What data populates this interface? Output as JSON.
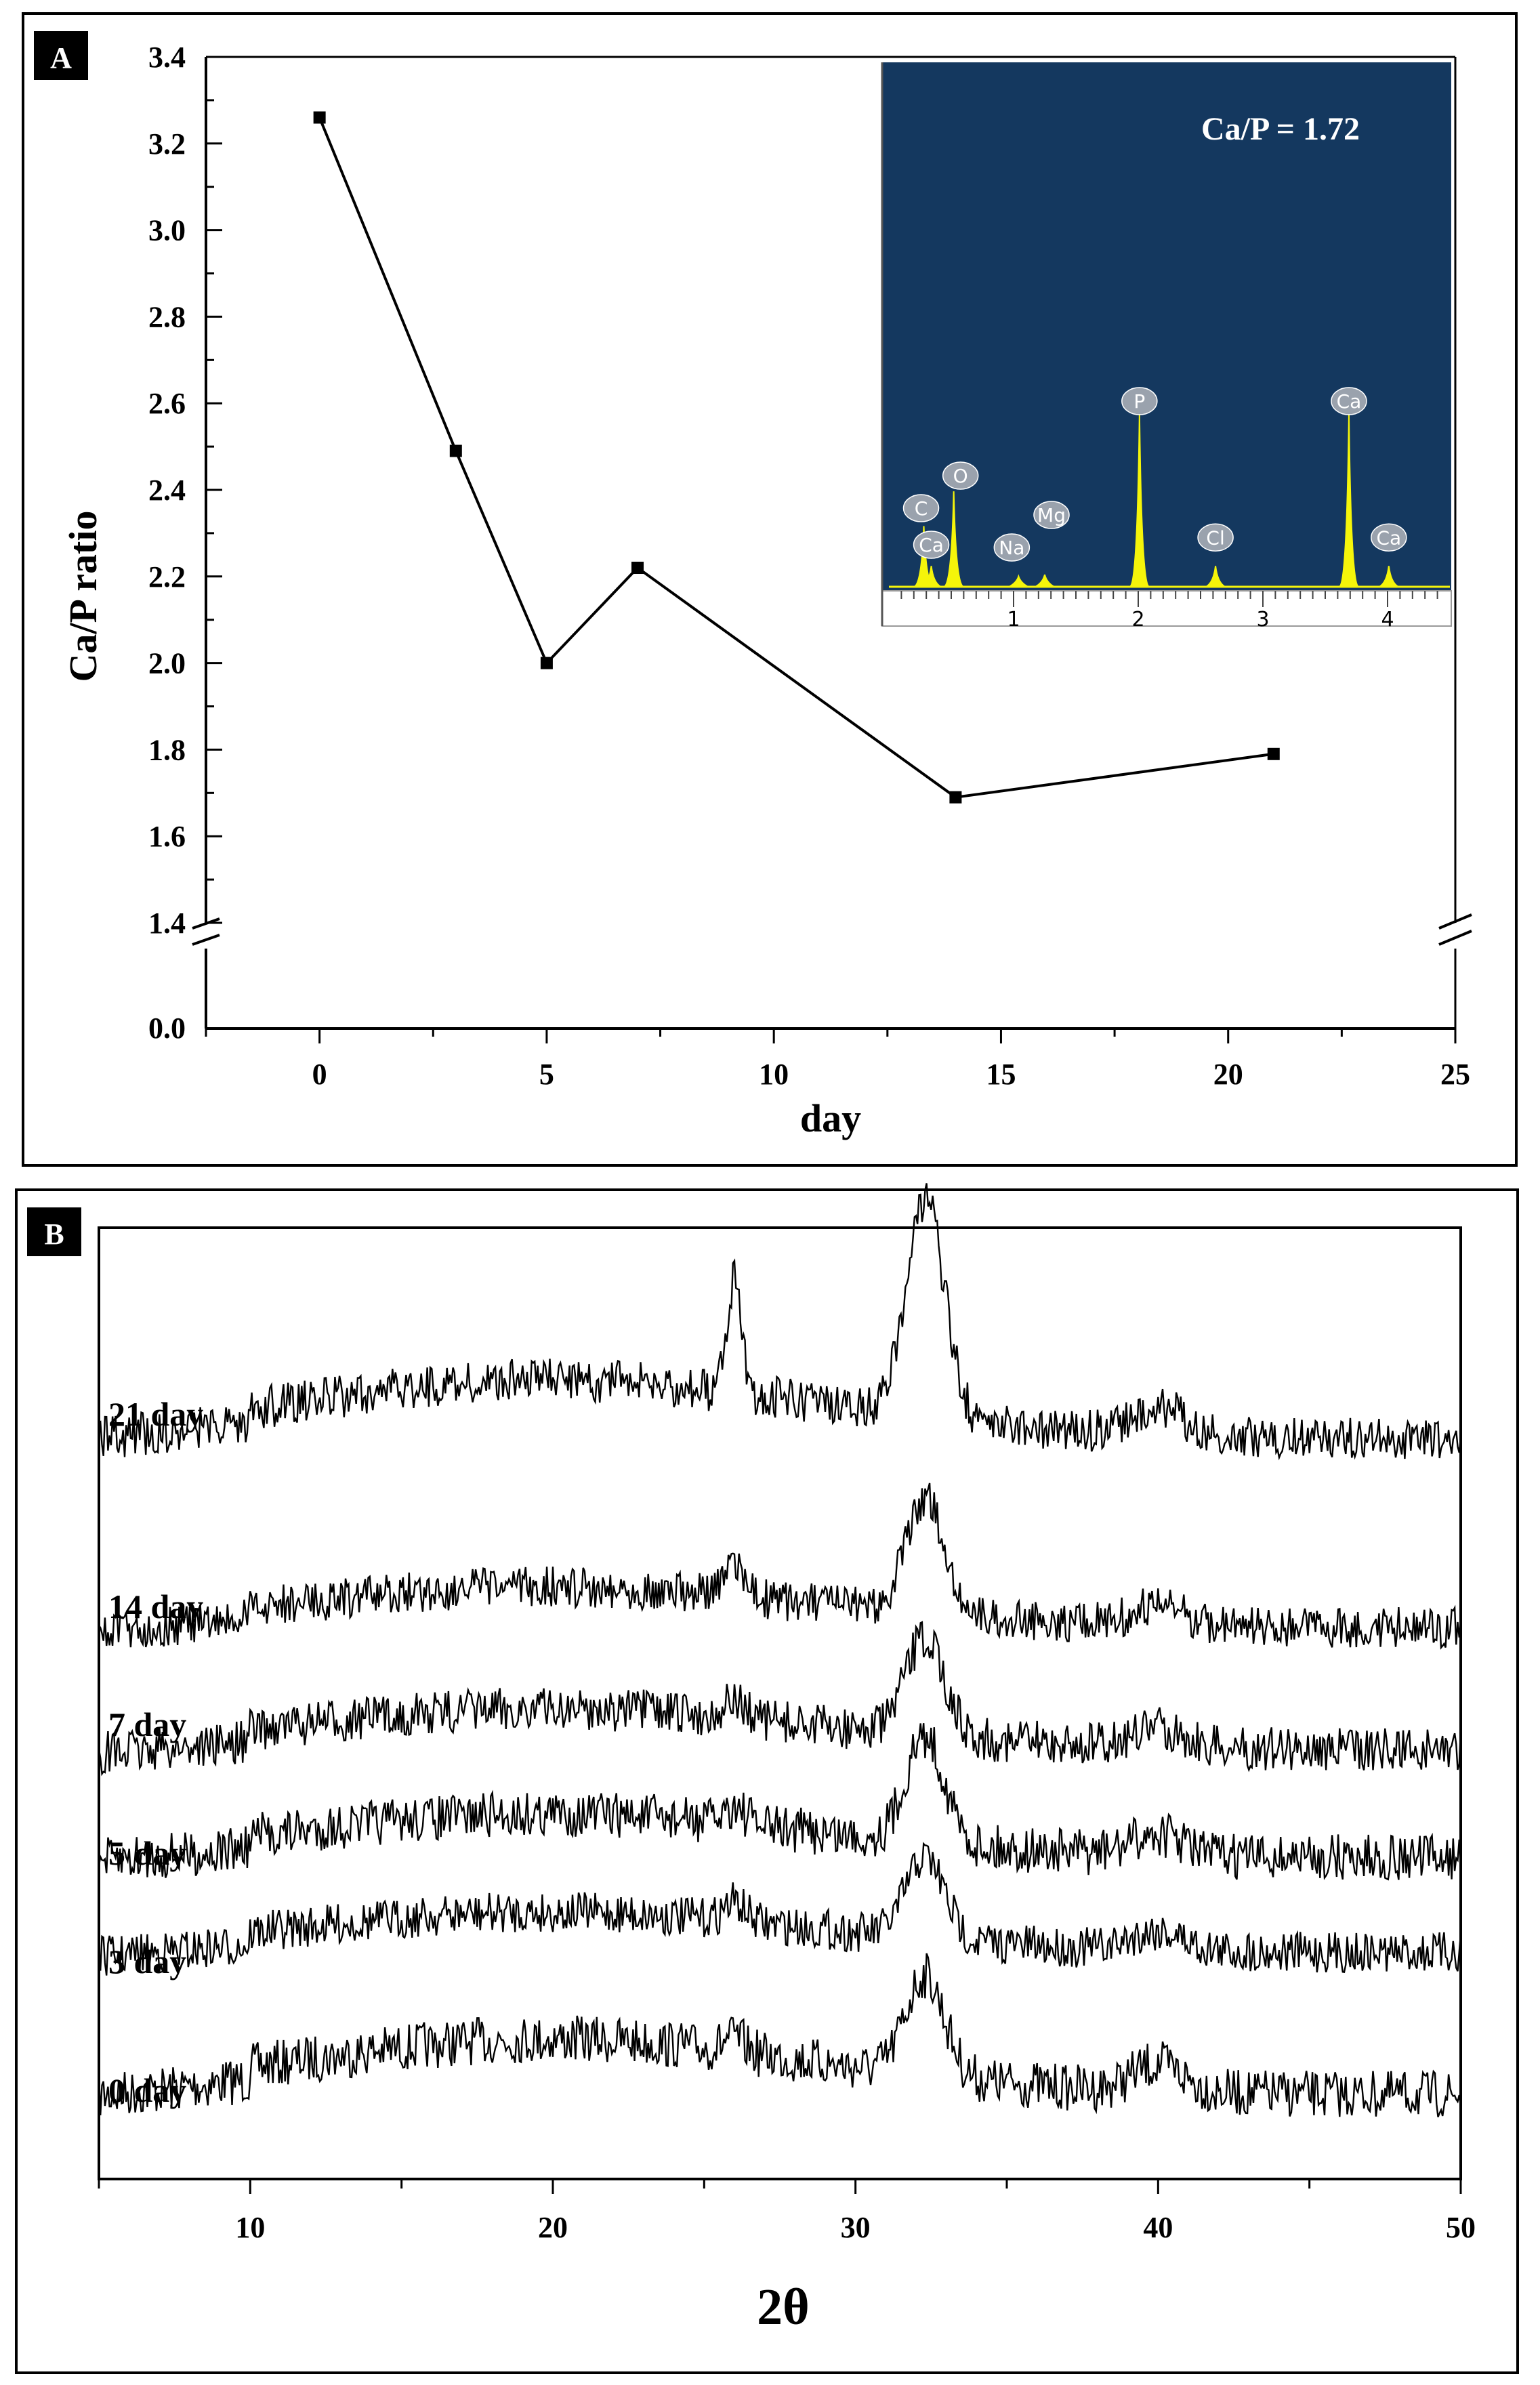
{
  "panels": {
    "a": {
      "badge": "A"
    },
    "b": {
      "badge": "B"
    }
  },
  "colors": {
    "line": "#000000",
    "badge_bg": "#000000",
    "badge_fg": "#ffffff",
    "inset_bg": "#14385f",
    "inset_peak": "#f5f50a",
    "bubble": "#9aa2ad"
  },
  "chart_data": [
    {
      "type": "line",
      "panel": "A",
      "title": "",
      "xlabel": "day",
      "ylabel": "Ca/P ratio",
      "x": [
        0,
        3,
        5,
        7,
        14,
        21
      ],
      "y": [
        3.26,
        2.49,
        2.0,
        2.22,
        1.69,
        1.79
      ],
      "xlim": [
        -2.5,
        25
      ],
      "xticks": [
        0,
        5,
        10,
        15,
        20,
        25
      ],
      "xtick_labels": [
        "0",
        "5",
        "10",
        "15",
        "20",
        "25"
      ],
      "ylim": [
        1.4,
        3.4
      ],
      "yticks": [
        1.4,
        1.6,
        1.8,
        2.0,
        2.2,
        2.4,
        2.6,
        2.8,
        3.0,
        3.2,
        3.4
      ],
      "ytick_labels": [
        "1.4",
        "1.6",
        "1.8",
        "2.0",
        "2.2",
        "2.4",
        "2.6",
        "2.8",
        "3.0",
        "3.2",
        "3.4"
      ],
      "axis_break": {
        "lower_label": "0.0",
        "upper_start": "1.4"
      },
      "marker": "square",
      "inset": {
        "type": "edx_spectrum",
        "annotation": "Ca/P = 1.72",
        "xlim": [
          0,
          4.5
        ],
        "xticks": [
          1,
          2,
          3,
          4
        ],
        "xtick_labels": [
          "1",
          "2",
          "3",
          "4"
        ],
        "peaks": [
          {
            "label": "C",
            "energy": 0.28,
            "height": 0.35
          },
          {
            "label": "Ca",
            "energy": 0.34,
            "height": 0.12
          },
          {
            "label": "O",
            "energy": 0.52,
            "height": 0.55
          },
          {
            "label": "Na",
            "energy": 1.04,
            "height": 0.06
          },
          {
            "label": "Mg",
            "energy": 1.25,
            "height": 0.07
          },
          {
            "label": "P",
            "energy": 2.01,
            "height": 1.0
          },
          {
            "label": "Cl",
            "energy": 2.62,
            "height": 0.12
          },
          {
            "label": "Ca",
            "energy": 3.69,
            "height": 1.0
          },
          {
            "label": "Ca",
            "energy": 4.01,
            "height": 0.12
          }
        ]
      }
    },
    {
      "type": "line",
      "panel": "B",
      "title": "",
      "xlabel": "2θ",
      "ylabel": "",
      "xlim": [
        5,
        50
      ],
      "xticks": [
        10,
        20,
        30,
        40,
        50
      ],
      "xtick_labels": [
        "10",
        "20",
        "30",
        "40",
        "50"
      ],
      "y_ticks_visible": false,
      "series": [
        {
          "name": "0 day",
          "peaks": [
            {
              "two_theta": 32.3,
              "height": 0.45,
              "width": 0.9
            },
            {
              "two_theta": 26.0,
              "height": 0.06,
              "width": 0.5
            }
          ]
        },
        {
          "name": "3 day",
          "peaks": [
            {
              "two_theta": 32.3,
              "height": 0.5,
              "width": 0.9
            },
            {
              "two_theta": 26.0,
              "height": 0.12,
              "width": 0.5
            }
          ]
        },
        {
          "name": "5 day",
          "peaks": [
            {
              "two_theta": 32.3,
              "height": 0.6,
              "width": 0.9
            },
            {
              "two_theta": 26.0,
              "height": 0.1,
              "width": 0.5
            }
          ]
        },
        {
          "name": "7 day",
          "peaks": [
            {
              "two_theta": 32.3,
              "height": 0.6,
              "width": 0.9
            },
            {
              "two_theta": 26.0,
              "height": 0.1,
              "width": 0.5
            }
          ]
        },
        {
          "name": "14 day",
          "peaks": [
            {
              "two_theta": 32.3,
              "height": 0.7,
              "width": 0.9
            },
            {
              "two_theta": 26.0,
              "height": 0.22,
              "width": 0.4
            }
          ]
        },
        {
          "name": "21 day",
          "peaks": [
            {
              "two_theta": 32.3,
              "height": 0.95,
              "width": 0.9
            },
            {
              "two_theta": 26.0,
              "height": 0.5,
              "width": 0.35
            }
          ]
        }
      ]
    }
  ]
}
